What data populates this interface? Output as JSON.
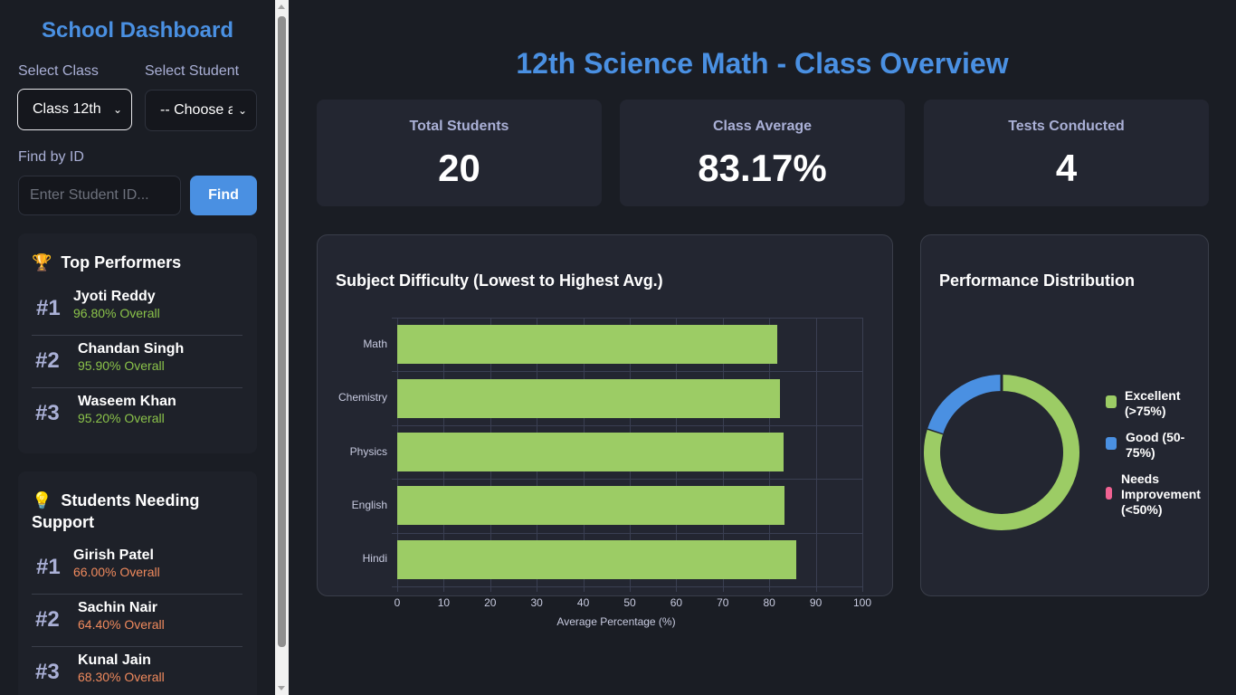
{
  "sidebar": {
    "title": "School Dashboard",
    "select_class_label": "Select Class",
    "select_student_label": "Select Student",
    "class_select_value": "Class 12th",
    "student_select_value": "-- Choose a",
    "find_by_id_label": "Find by ID",
    "id_input_placeholder": "Enter Student ID...",
    "find_button": "Find",
    "top_performers": {
      "icon": "trophy-icon",
      "icon_glyph": "🏆",
      "title": "Top Performers",
      "items": [
        {
          "rank": "#1",
          "name": "Jyoti Reddy",
          "score": "96.80% Overall"
        },
        {
          "rank": "#2",
          "name": "Chandan Singh",
          "score": "95.90% Overall"
        },
        {
          "rank": "#3",
          "name": "Waseem Khan",
          "score": "95.20% Overall"
        }
      ]
    },
    "needing_support": {
      "icon": "lightbulb-icon",
      "icon_glyph": "💡",
      "title_line1": "Students Needing",
      "title_line2": "Support",
      "items": [
        {
          "rank": "#1",
          "name": "Girish Patel",
          "score": "66.00% Overall"
        },
        {
          "rank": "#2",
          "name": "Sachin Nair",
          "score": "64.40% Overall"
        },
        {
          "rank": "#3",
          "name": "Kunal Jain",
          "score": "68.30% Overall"
        }
      ]
    }
  },
  "main": {
    "title": "12th Science Math - Class Overview",
    "stats": [
      {
        "label": "Total Students",
        "value": "20"
      },
      {
        "label": "Class Average",
        "value": "83.17%"
      },
      {
        "label": "Tests Conducted",
        "value": "4"
      }
    ],
    "bar_panel_title": "Subject Difficulty (Lowest to Highest Avg.)",
    "donut_panel_title": "Performance Distribution"
  },
  "colors": {
    "accent": "#4a90e2",
    "excellent": "#9ccc65",
    "good": "#4a90e2",
    "needs_improvement": "#f06292",
    "positive_text": "#8bc34a",
    "negative_text": "#f08a5d"
  },
  "chart_data": [
    {
      "type": "bar",
      "orientation": "horizontal",
      "title": "Subject Difficulty (Lowest to Highest Avg.)",
      "categories": [
        "Math",
        "Chemistry",
        "Physics",
        "English",
        "Hindi"
      ],
      "values": [
        81.7,
        82.2,
        83.0,
        83.2,
        85.8
      ],
      "xlabel": "Average Percentage (%)",
      "ylabel": "",
      "xlim": [
        0,
        100
      ],
      "xticks": [
        "0",
        "10",
        "20",
        "30",
        "40",
        "50",
        "60",
        "70",
        "80",
        "90",
        "100"
      ],
      "grid": true,
      "color": "#9ccc65"
    },
    {
      "type": "pie",
      "variant": "doughnut",
      "title": "Performance Distribution",
      "categories": [
        "Excellent (>75%)",
        "Good (50-75%)",
        "Needs Improvement (<50%)"
      ],
      "values": [
        16,
        4,
        0
      ],
      "colors": [
        "#9ccc65",
        "#4a90e2",
        "#f06292"
      ],
      "legend_position": "right"
    }
  ]
}
